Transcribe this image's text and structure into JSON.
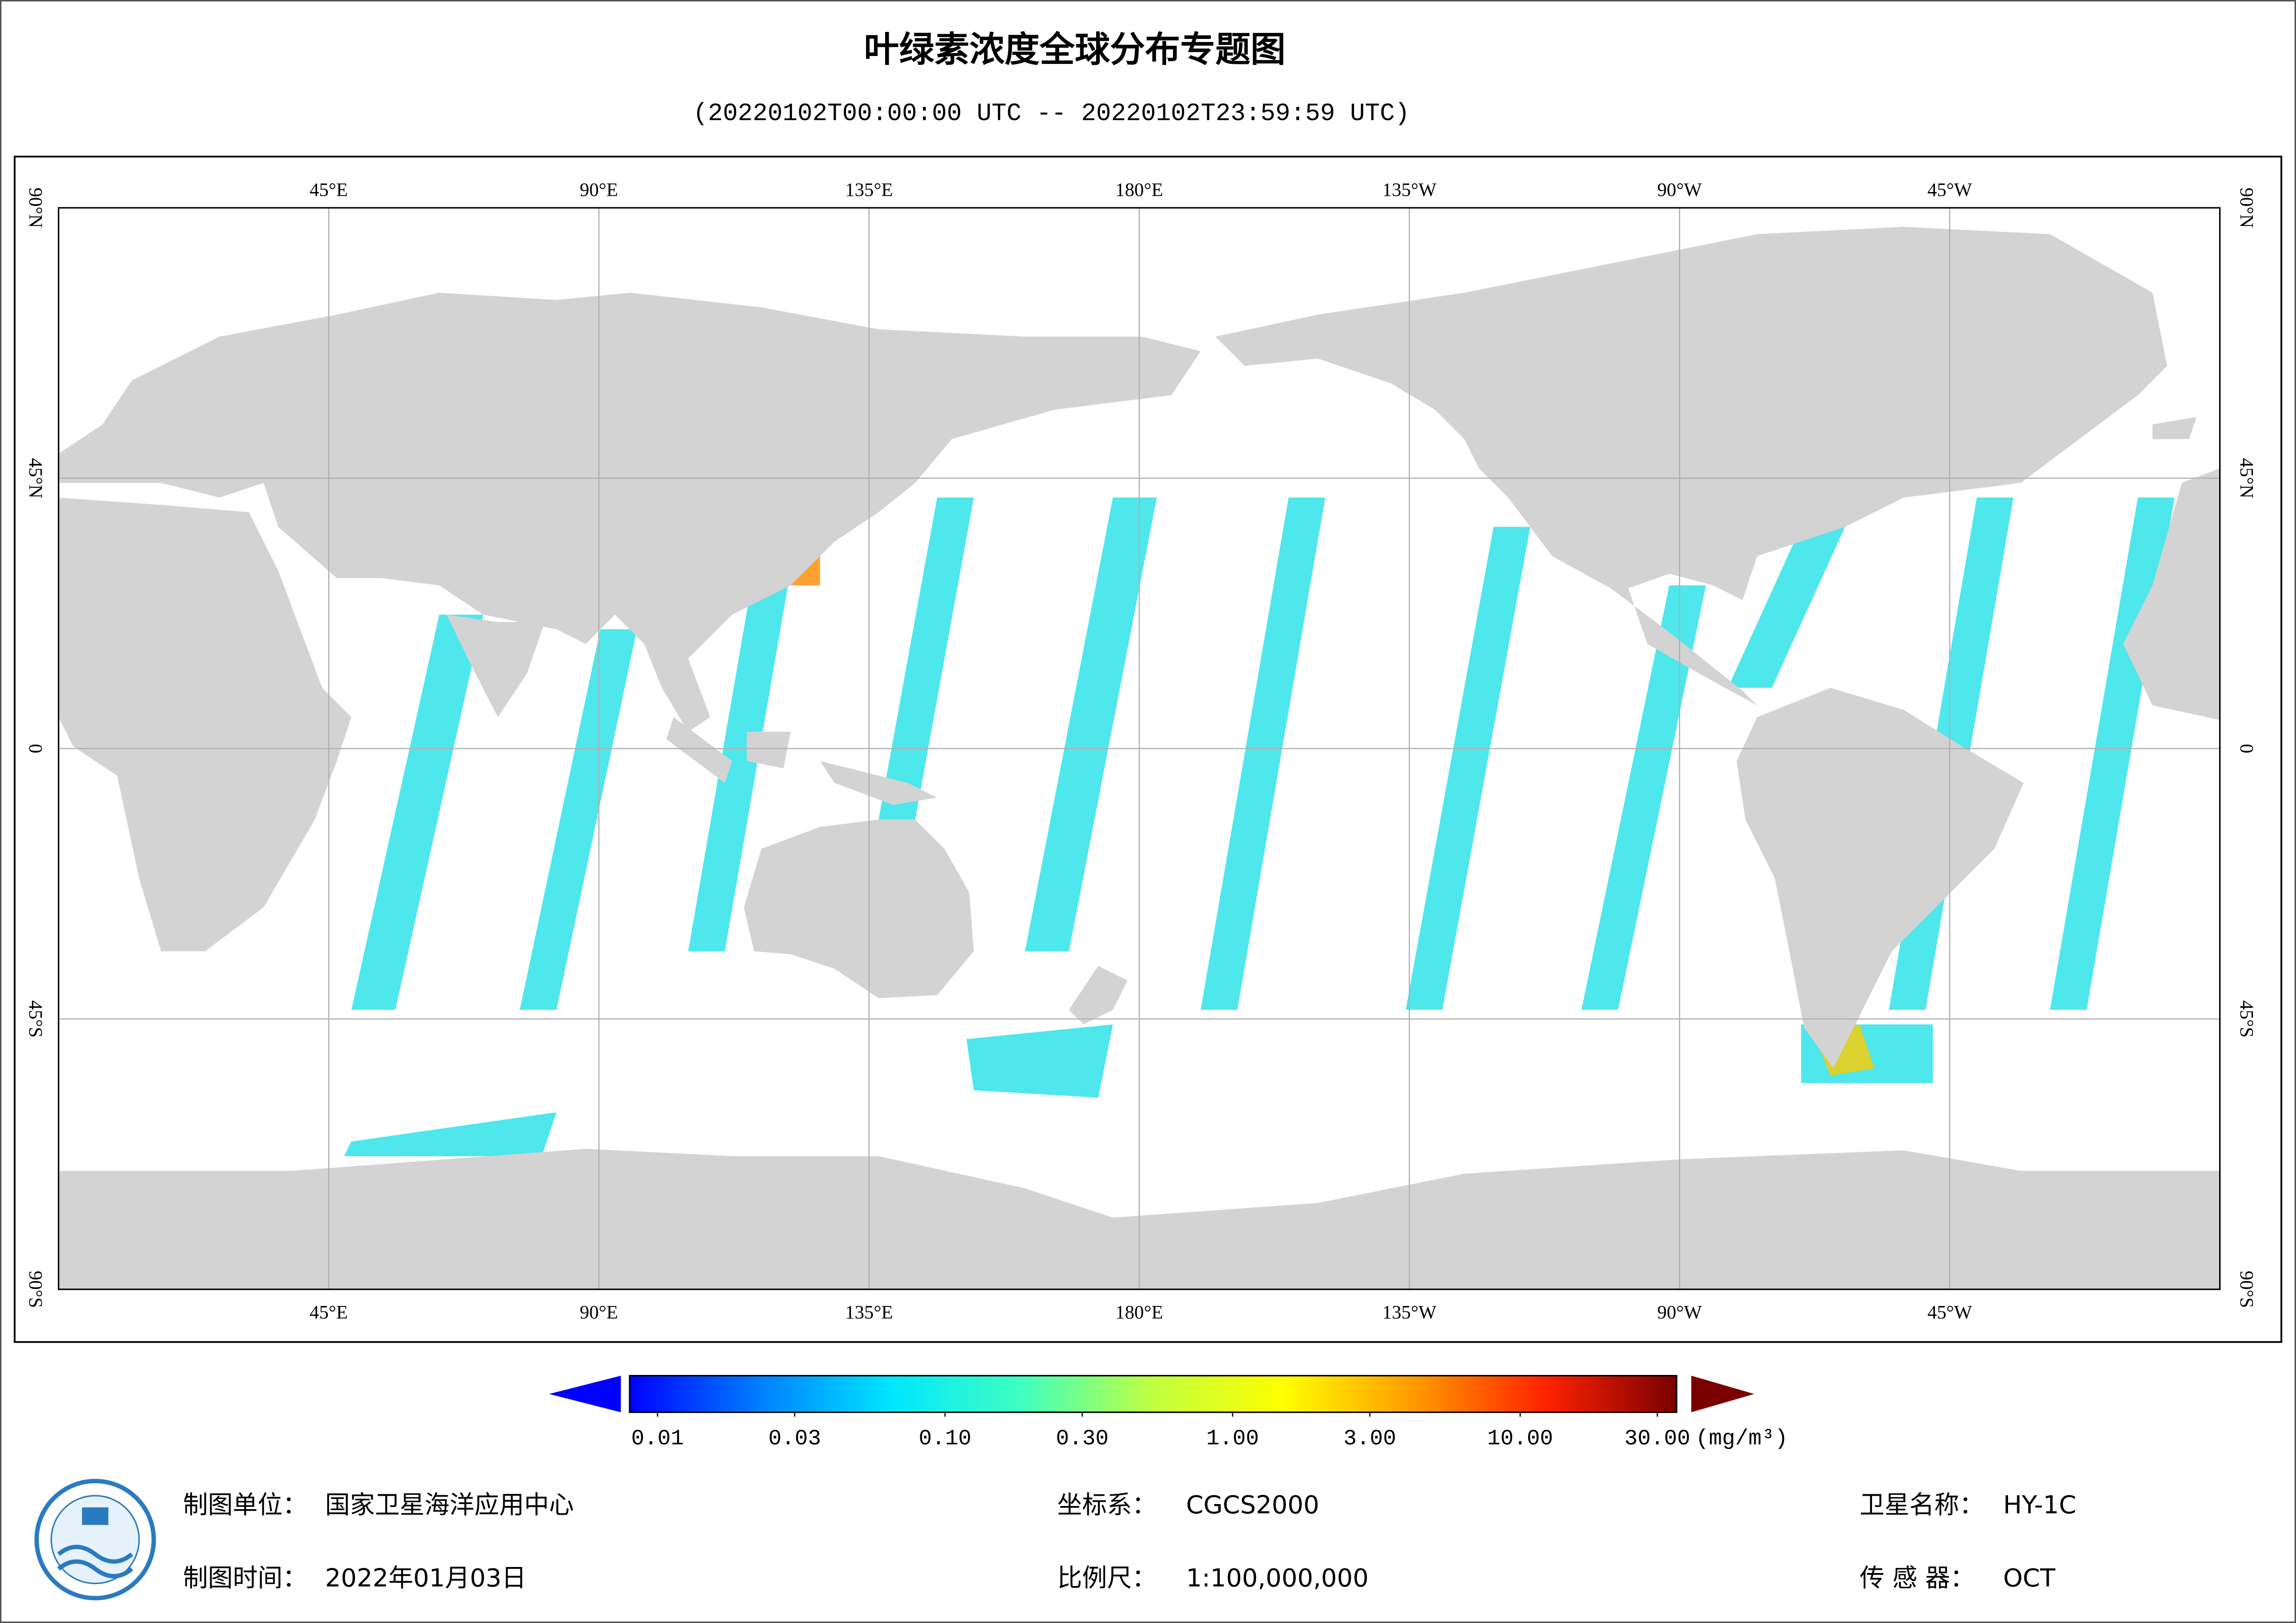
{
  "header": {
    "title": "叶绿素浓度全球分布专题图",
    "subtitle": "(20220102T00:00:00 UTC -- 20220102T23:59:59 UTC)"
  },
  "map": {
    "lon_range": [
      0,
      360
    ],
    "lat_range": [
      -90,
      90
    ],
    "lon_ticks": [
      {
        "value": 45,
        "label": "45°E"
      },
      {
        "value": 90,
        "label": "90°E"
      },
      {
        "value": 135,
        "label": "135°E"
      },
      {
        "value": 180,
        "label": "180°E"
      },
      {
        "value": 225,
        "label": "135°W"
      },
      {
        "value": 270,
        "label": "90°W"
      },
      {
        "value": 315,
        "label": "45°W"
      }
    ],
    "lat_ticks": [
      {
        "value": 90,
        "label": "90°N"
      },
      {
        "value": 45,
        "label": "45°N"
      },
      0,
      {
        "value": -45,
        "label": "45°S"
      },
      {
        "value": -90,
        "label": "90°S"
      }
    ],
    "grid": true
  },
  "colorbar": {
    "log": true,
    "range": [
      0.008,
      35
    ],
    "ticks": [
      {
        "value": 0.01,
        "label": "0.01"
      },
      {
        "value": 0.03,
        "label": "0.03"
      },
      {
        "value": 0.1,
        "label": "0.10"
      },
      {
        "value": 0.3,
        "label": "0.30"
      },
      {
        "value": 1,
        "label": "1.00"
      },
      {
        "value": 3,
        "label": "3.00"
      },
      {
        "value": 10,
        "label": "10.00"
      },
      {
        "value": 30,
        "label": "30.00"
      }
    ],
    "unit": "(mg/m³)",
    "colors": [
      "#0000ff",
      "#0080ff",
      "#00e6ff",
      "#40ffc0",
      "#c0ff40",
      "#ffff00",
      "#ff9900",
      "#ff2200",
      "#7a0000"
    ]
  },
  "footer": [
    {
      "label": "制图单位：",
      "value": "国家卫星海洋应用中心"
    },
    {
      "label": "坐标系：",
      "value": "CGCS2000"
    },
    {
      "label": "卫星名称：",
      "value": "HY-1C"
    },
    {
      "label": "制图时间：",
      "value": "2022年01月03日"
    },
    {
      "label": "比例尺：",
      "value": "1:100,000,000"
    },
    {
      "label": "传 感 器：",
      "value": "OCT"
    }
  ]
}
